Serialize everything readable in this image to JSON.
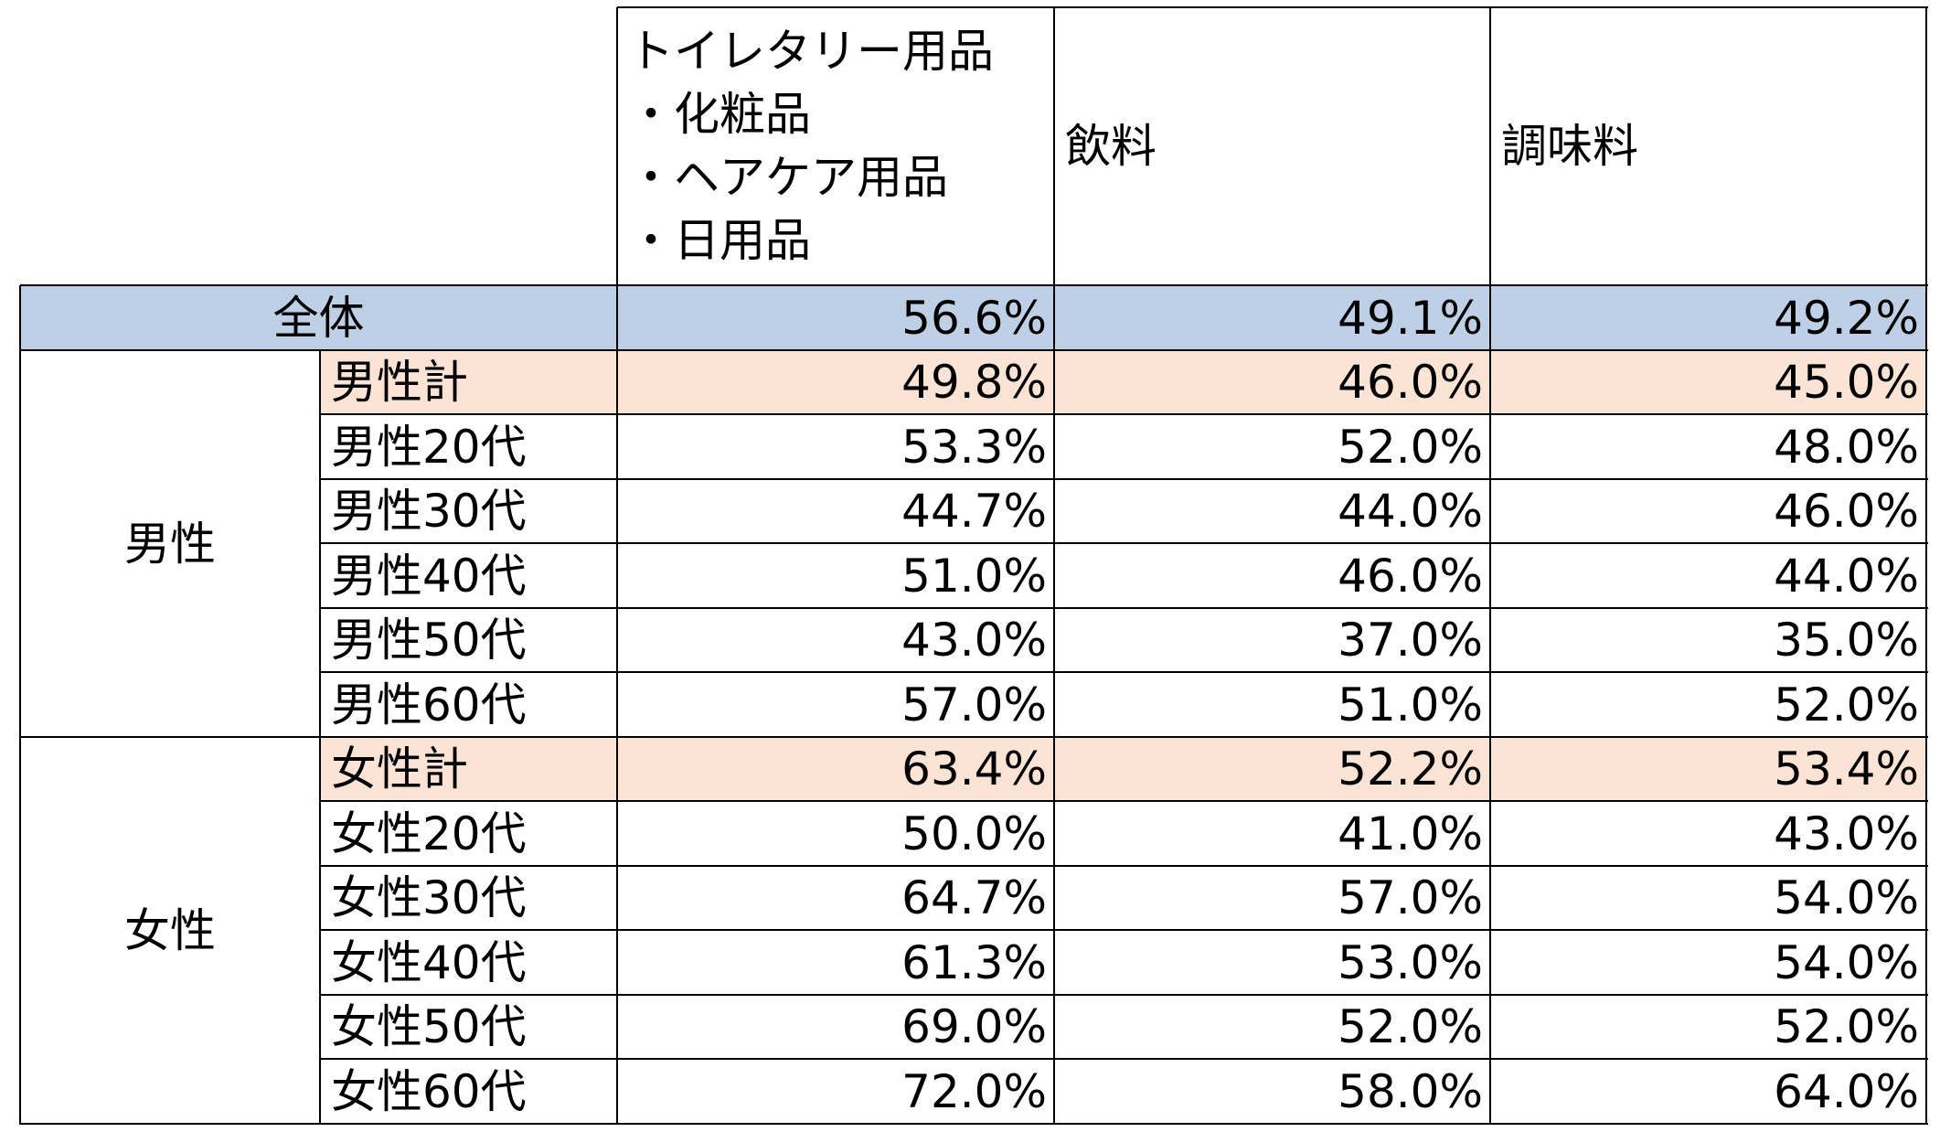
{
  "chart_data": {
    "type": "table",
    "columns": [
      {
        "lines": [
          "トイレタリー用品",
          "・化粧品",
          "・ヘアケア用品",
          "・日用品"
        ]
      },
      {
        "lines": [
          "飲料"
        ]
      },
      {
        "lines": [
          "調味料"
        ]
      }
    ],
    "total": {
      "label": "全体",
      "values": [
        "56.6%",
        "49.1%",
        "49.2%"
      ]
    },
    "groups": [
      {
        "label": "男性",
        "rows": [
          {
            "label": "男性計",
            "subtotal": true,
            "values": [
              "49.8%",
              "46.0%",
              "45.0%"
            ]
          },
          {
            "label": "男性20代",
            "values": [
              "53.3%",
              "52.0%",
              "48.0%"
            ]
          },
          {
            "label": "男性30代",
            "values": [
              "44.7%",
              "44.0%",
              "46.0%"
            ]
          },
          {
            "label": "男性40代",
            "values": [
              "51.0%",
              "46.0%",
              "44.0%"
            ]
          },
          {
            "label": "男性50代",
            "values": [
              "43.0%",
              "37.0%",
              "35.0%"
            ]
          },
          {
            "label": "男性60代",
            "values": [
              "57.0%",
              "51.0%",
              "52.0%"
            ]
          }
        ]
      },
      {
        "label": "女性",
        "rows": [
          {
            "label": "女性計",
            "subtotal": true,
            "values": [
              "63.4%",
              "52.2%",
              "53.4%"
            ]
          },
          {
            "label": "女性20代",
            "values": [
              "50.0%",
              "41.0%",
              "43.0%"
            ]
          },
          {
            "label": "女性30代",
            "values": [
              "64.7%",
              "57.0%",
              "54.0%"
            ]
          },
          {
            "label": "女性40代",
            "values": [
              "61.3%",
              "53.0%",
              "54.0%"
            ]
          },
          {
            "label": "女性50代",
            "values": [
              "69.0%",
              "52.0%",
              "52.0%"
            ]
          },
          {
            "label": "女性60代",
            "values": [
              "72.0%",
              "58.0%",
              "64.0%"
            ]
          }
        ]
      }
    ]
  },
  "colors": {
    "total_fill": "#bdd0e5",
    "subtotal_fill": "#fbe4d4",
    "grid": "#000000",
    "text": "#000000"
  }
}
